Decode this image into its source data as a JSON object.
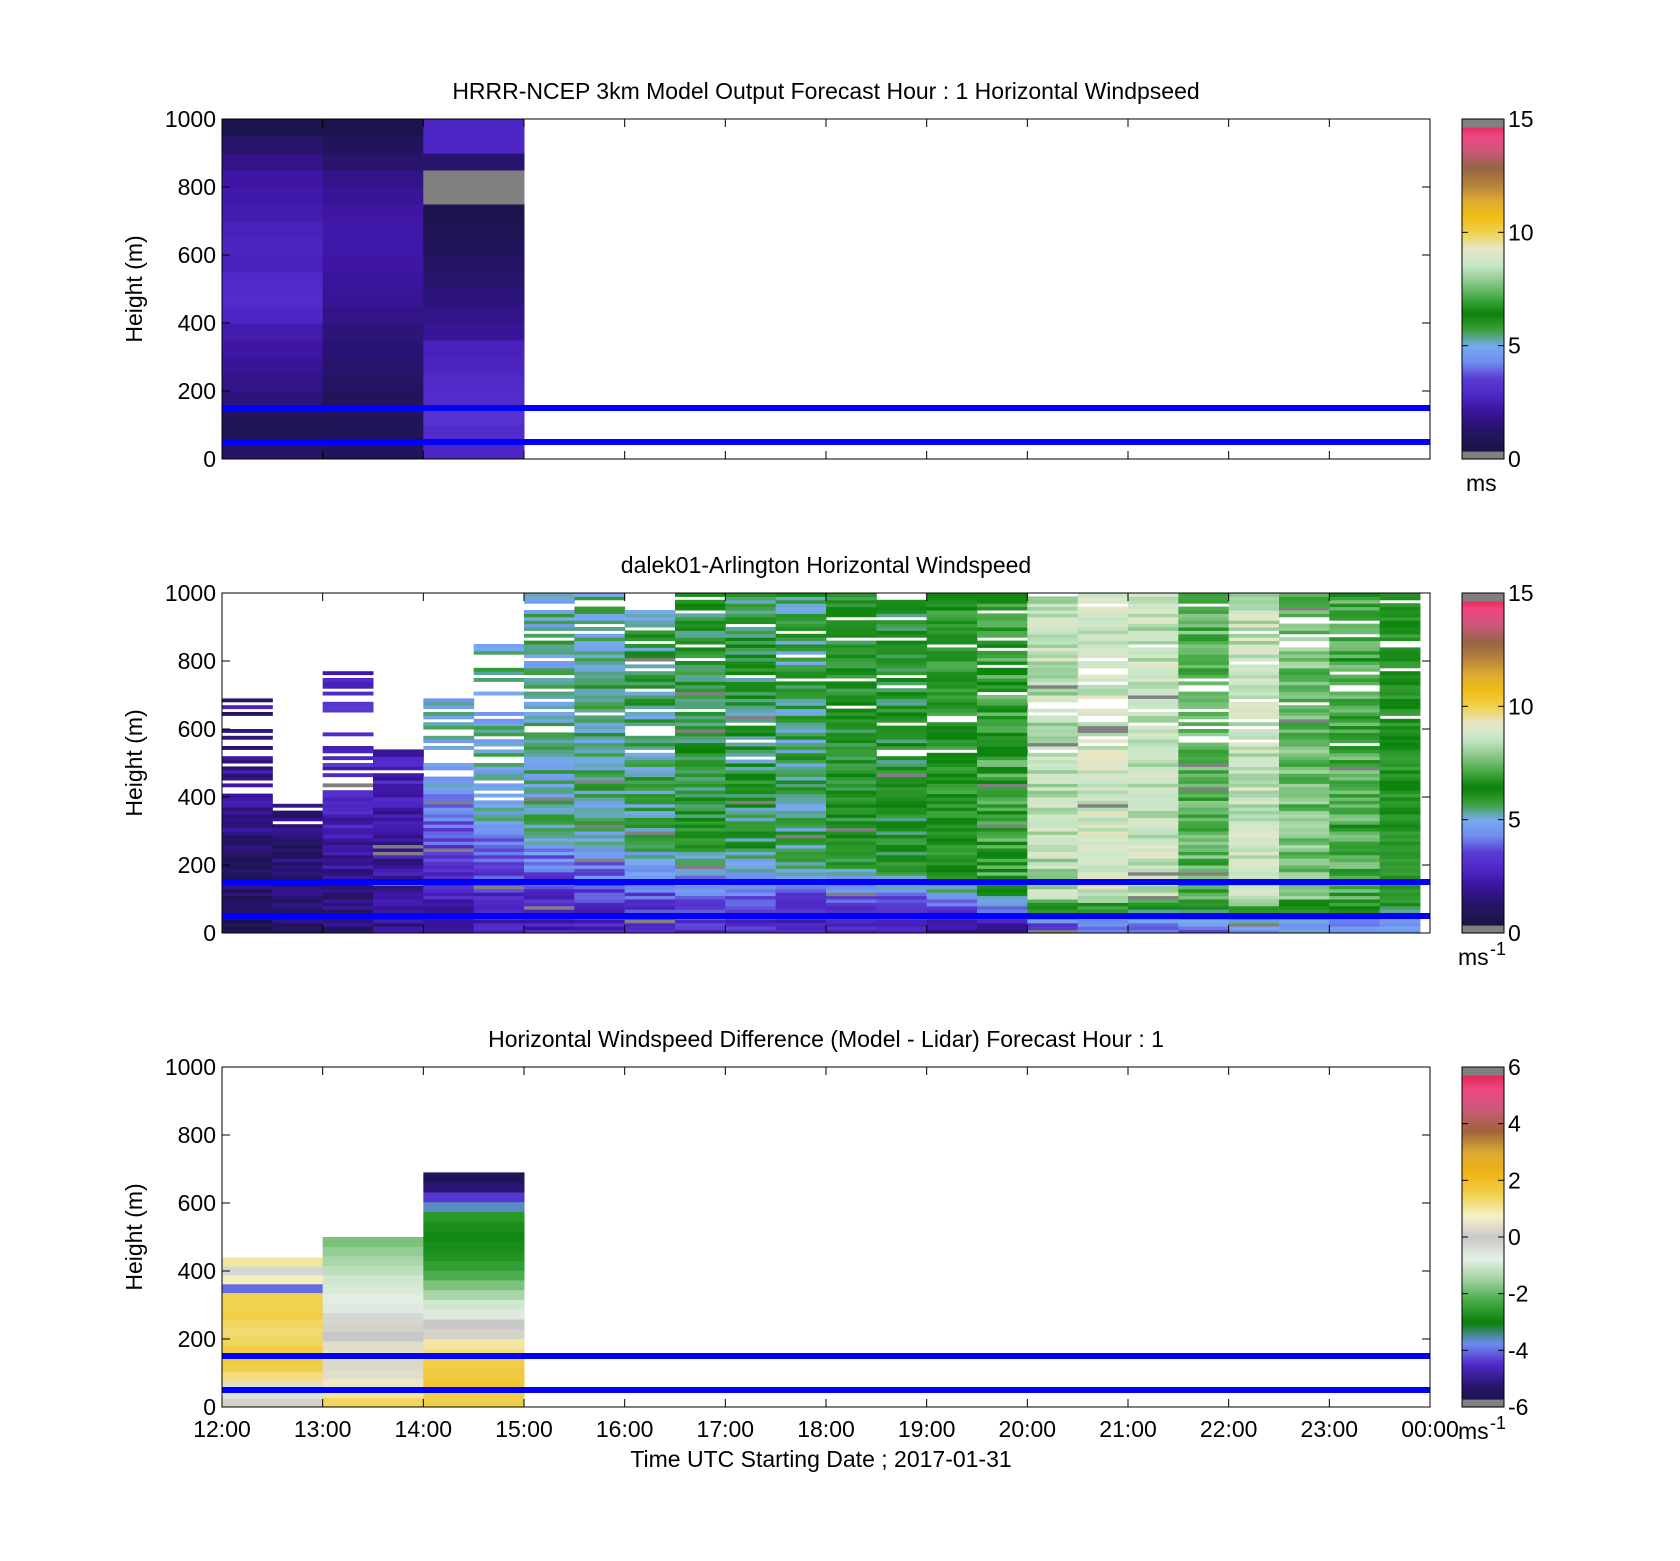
{
  "colors": {
    "speed_scale": [
      "#808080",
      "#14143c",
      "#1e1450",
      "#28146e",
      "#3c14a0",
      "#5028c8",
      "#5a3cd2",
      "#6e8cf0",
      "#78aaf0",
      "#3ca03c",
      "#0a820a",
      "#46aa46",
      "#8cc88c",
      "#c8e6c8",
      "#e6e6c8",
      "#f0d250",
      "#f0be14",
      "#dcaa32",
      "#b4823c",
      "#966446",
      "#c85a78",
      "#f04682",
      "#dc143c",
      "#808080"
    ],
    "diff_scale": [
      "#808080",
      "#14143c",
      "#28146e",
      "#5028c8",
      "#6e8cf0",
      "#0a820a",
      "#46aa46",
      "#a0d2a0",
      "#e6f0e6",
      "#c8c8c8",
      "#f5f0c8",
      "#f0d250",
      "#f0b414",
      "#dcaa32",
      "#a0643c",
      "#c85a78",
      "#f04682",
      "#dc143c",
      "#808080"
    ],
    "guide_line": "#0000ff"
  },
  "chart_data": [
    {
      "type": "heatmap",
      "title": "HRRR-NCEP 3km Model Output   Forecast Hour : 1 Horizontal Windpseed",
      "ylabel": "Height (m)",
      "ylim": [
        0,
        1000
      ],
      "yticks": [
        "0",
        "200",
        "400",
        "600",
        "800",
        "1000"
      ],
      "x_range_hours": [
        12,
        24
      ],
      "colorbar": {
        "min": 0,
        "max": 15,
        "ticks": [
          "0",
          "5",
          "10",
          "15"
        ],
        "unit": "ms"
      },
      "guide_lines_m": [
        50,
        150
      ],
      "columns": [
        {
          "start_hour": 12,
          "end_hour": 13,
          "heights_m": [
            0,
            50,
            100,
            150,
            200,
            250,
            300,
            350,
            400,
            450,
            500,
            550,
            600,
            650,
            700,
            750,
            800,
            850,
            900,
            950
          ],
          "values": [
            1.2,
            0.8,
            0.9,
            1.6,
            1.8,
            2.0,
            2.2,
            2.4,
            2.8,
            3.0,
            2.9,
            2.6,
            2.7,
            2.6,
            2.4,
            2.3,
            2.2,
            1.8,
            1.4,
            0.6
          ]
        },
        {
          "start_hour": 13,
          "end_hour": 14,
          "heights_m": [
            0,
            50,
            100,
            150,
            200,
            250,
            300,
            350,
            400,
            450,
            500,
            550,
            600,
            650,
            700,
            750,
            800,
            850,
            900,
            950
          ],
          "values": [
            1.0,
            0.9,
            0.9,
            1.0,
            1.2,
            1.4,
            1.5,
            1.6,
            1.8,
            2.0,
            2.1,
            2.2,
            2.3,
            2.3,
            2.2,
            2.0,
            1.8,
            1.4,
            1.0,
            0.6
          ]
        },
        {
          "start_hour": 14,
          "end_hour": 15,
          "heights_m": [
            0,
            50,
            100,
            150,
            200,
            250,
            300,
            350,
            400,
            450,
            500,
            550,
            600,
            650,
            700,
            750,
            800,
            850,
            900,
            950
          ],
          "values": [
            2.8,
            3.0,
            3.2,
            3.0,
            2.9,
            2.7,
            2.6,
            2.0,
            1.8,
            1.6,
            1.4,
            1.2,
            1.0,
            0.8,
            0.6,
            0.0,
            0.0,
            1.4,
            2.8,
            2.8
          ]
        }
      ]
    },
    {
      "type": "heatmap",
      "title": "dalek01-Arlington  Horizontal Windspeed",
      "ylabel": "Height (m)",
      "ylim": [
        0,
        1000
      ],
      "yticks": [
        "0",
        "200",
        "400",
        "600",
        "800",
        "1000"
      ],
      "x_range_hours": [
        12,
        24
      ],
      "colorbar": {
        "min": 0,
        "max": 15,
        "ticks": [
          "0",
          "5",
          "10",
          "15"
        ],
        "unit": "ms",
        "unit_exponent": "-1"
      },
      "guide_lines_m": [
        50,
        150
      ],
      "profiles": [
        {
          "start_hour": 12.0,
          "end_hour": 12.5,
          "top_m": 700,
          "surface": 1.0,
          "boundary_layer_m": 400,
          "upper": 2.0,
          "note_values": []
        },
        {
          "start_hour": 12.5,
          "end_hour": 13.0,
          "top_m": 400,
          "surface": 1.2,
          "boundary_layer_m": 300,
          "upper": 1.5
        },
        {
          "start_hour": 13.0,
          "end_hour": 13.5,
          "top_m": 800,
          "surface": 1.5,
          "boundary_layer_m": 400,
          "upper": 3.0
        },
        {
          "start_hour": 13.5,
          "end_hour": 14.0,
          "top_m": 550,
          "surface": 2.0,
          "boundary_layer_m": 450,
          "upper": 2.6
        },
        {
          "start_hour": 14.0,
          "end_hour": 14.5,
          "top_m": 700,
          "surface": 2.4,
          "boundary_layer_m": 450,
          "upper": 5.0
        },
        {
          "start_hour": 14.5,
          "end_hour": 15.0,
          "top_m": 850,
          "surface": 2.6,
          "boundary_layer_m": 350,
          "upper": 5.2
        },
        {
          "start_hour": 15.0,
          "end_hour": 15.5,
          "top_m": 1000,
          "surface": 2.6,
          "boundary_layer_m": 300,
          "upper": 5.3
        },
        {
          "start_hour": 15.5,
          "end_hour": 16.0,
          "top_m": 1000,
          "surface": 2.8,
          "boundary_layer_m": 280,
          "upper": 5.4
        },
        {
          "start_hour": 16.0,
          "end_hour": 16.5,
          "top_m": 950,
          "surface": 3.0,
          "boundary_layer_m": 260,
          "upper": 5.6
        },
        {
          "start_hour": 16.5,
          "end_hour": 17.0,
          "top_m": 1000,
          "surface": 3.2,
          "boundary_layer_m": 250,
          "upper": 6.0
        },
        {
          "start_hour": 17.0,
          "end_hour": 17.5,
          "top_m": 1000,
          "surface": 3.0,
          "boundary_layer_m": 240,
          "upper": 5.8
        },
        {
          "start_hour": 17.5,
          "end_hour": 18.0,
          "top_m": 1000,
          "surface": 2.8,
          "boundary_layer_m": 220,
          "upper": 5.6
        },
        {
          "start_hour": 18.0,
          "end_hour": 18.5,
          "top_m": 1000,
          "surface": 2.6,
          "boundary_layer_m": 200,
          "upper": 6.2
        },
        {
          "start_hour": 18.5,
          "end_hour": 19.0,
          "top_m": 1000,
          "surface": 2.4,
          "boundary_layer_m": 180,
          "upper": 6.0
        },
        {
          "start_hour": 19.0,
          "end_hour": 19.5,
          "top_m": 1000,
          "surface": 2.2,
          "boundary_layer_m": 150,
          "upper": 6.6
        },
        {
          "start_hour": 19.5,
          "end_hour": 20.0,
          "top_m": 1000,
          "surface": 2.4,
          "boundary_layer_m": 120,
          "upper": 7.0
        },
        {
          "start_hour": 20.0,
          "end_hour": 20.5,
          "top_m": 1000,
          "surface": 3.4,
          "boundary_layer_m": 100,
          "upper": 8.4
        },
        {
          "start_hour": 20.5,
          "end_hour": 21.0,
          "top_m": 1000,
          "surface": 3.6,
          "boundary_layer_m": 100,
          "upper": 8.8
        },
        {
          "start_hour": 21.0,
          "end_hour": 21.5,
          "top_m": 1000,
          "surface": 3.8,
          "boundary_layer_m": 100,
          "upper": 8.6
        },
        {
          "start_hour": 21.5,
          "end_hour": 22.0,
          "top_m": 1000,
          "surface": 4.0,
          "boundary_layer_m": 100,
          "upper": 7.4
        },
        {
          "start_hour": 22.0,
          "end_hour": 22.5,
          "top_m": 1000,
          "surface": 4.2,
          "boundary_layer_m": 100,
          "upper": 8.6
        },
        {
          "start_hour": 22.5,
          "end_hour": 23.0,
          "top_m": 1000,
          "surface": 4.6,
          "boundary_layer_m": 100,
          "upper": 7.6
        },
        {
          "start_hour": 23.0,
          "end_hour": 23.5,
          "top_m": 1000,
          "surface": 4.4,
          "boundary_layer_m": 100,
          "upper": 7.2
        },
        {
          "start_hour": 23.5,
          "end_hour": 23.9,
          "top_m": 1000,
          "surface": 4.8,
          "boundary_layer_m": 100,
          "upper": 6.4
        }
      ]
    },
    {
      "type": "heatmap",
      "title": "Horizontal Windspeed Difference (Model - Lidar) Forecast Hour : 1",
      "ylabel": "Height (m)",
      "xlabel": "Time UTC  Starting Date ; 2017-01-31",
      "ylim": [
        0,
        1000
      ],
      "yticks": [
        "0",
        "200",
        "400",
        "600",
        "800",
        "1000"
      ],
      "x_range_hours": [
        12,
        24
      ],
      "xticks": [
        "12:00",
        "13:00",
        "14:00",
        "15:00",
        "16:00",
        "17:00",
        "18:00",
        "19:00",
        "20:00",
        "21:00",
        "22:00",
        "23:00",
        "00:00"
      ],
      "colorbar": {
        "min": -6,
        "max": 6,
        "ticks": [
          "-6",
          "-4",
          "-2",
          "0",
          "2",
          "4",
          "6"
        ],
        "unit": "ms",
        "unit_exponent": "-1"
      },
      "guide_lines_m": [
        50,
        150
      ],
      "columns": [
        {
          "start_hour": 12,
          "end_hour": 13,
          "top_m": 440,
          "values_bottom_to_top": [
            0.2,
            -0.5,
            0.4,
            1.2,
            1.6,
            1.7,
            1.6,
            1.4,
            1.3,
            1.4,
            1.6,
            1.5,
            1.5,
            -4.0,
            0.8,
            -0.3,
            1.0
          ]
        },
        {
          "start_hour": 13,
          "end_hour": 14,
          "top_m": 500,
          "values_bottom_to_top": [
            1.4,
            1.0,
            0.6,
            0.4,
            0.3,
            0.5,
            0.4,
            0.0,
            0.2,
            -0.3,
            -0.6,
            -0.8,
            -0.9,
            -1.0,
            -1.2,
            -1.4,
            -1.6,
            -1.8
          ]
        },
        {
          "start_hour": 14,
          "end_hour": 15,
          "top_m": 690,
          "values_bottom_to_top": [
            1.6,
            1.6,
            1.8,
            1.7,
            1.6,
            1.2,
            1.0,
            0.2,
            0.0,
            -0.6,
            -1.0,
            -1.4,
            -1.8,
            -2.2,
            -2.5,
            -2.7,
            -2.8,
            -2.9,
            -2.8,
            -2.6,
            -3.6,
            -4.4,
            -5.2,
            -5.6
          ]
        }
      ]
    }
  ]
}
